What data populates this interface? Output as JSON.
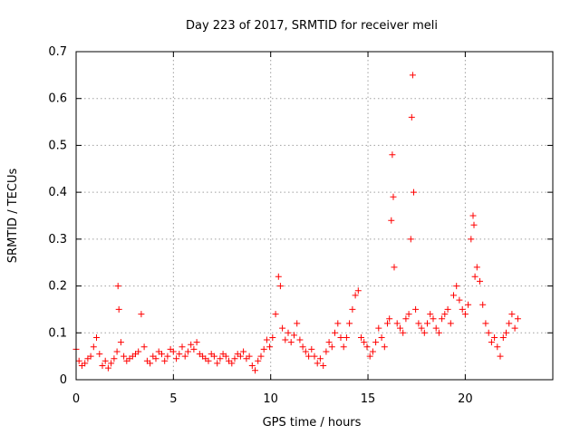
{
  "chart_data": {
    "type": "scatter",
    "title": "Day 223 of 2017, SRMTID for receiver meli",
    "xlabel": "GPS time / hours",
    "ylabel": "SRMTID / TECUs",
    "xlim": [
      0,
      24.5
    ],
    "ylim": [
      0,
      0.7
    ],
    "xticks": [
      0,
      5,
      10,
      15,
      20
    ],
    "xtick_labels": [
      "0",
      "5",
      "10",
      "15",
      "20"
    ],
    "yticks": [
      0,
      0.1,
      0.2,
      0.3,
      0.4,
      0.5,
      0.6,
      0.7
    ],
    "ytick_labels": [
      "0",
      "0.1",
      "0.2",
      "0.3",
      "0.4",
      "0.5",
      "0.6",
      "0.7"
    ],
    "grid": true,
    "marker": "+",
    "color": "#ff0000",
    "series": [
      {
        "name": "SRMTID",
        "x": [
          0.0,
          0.15,
          0.3,
          0.45,
          0.6,
          0.75,
          0.9,
          1.05,
          1.2,
          1.35,
          1.5,
          1.65,
          1.8,
          1.95,
          2.1,
          2.15,
          2.2,
          2.3,
          2.45,
          2.6,
          2.75,
          2.9,
          3.05,
          3.2,
          3.35,
          3.5,
          3.65,
          3.8,
          3.95,
          4.1,
          4.25,
          4.4,
          4.55,
          4.7,
          4.85,
          5.0,
          5.15,
          5.3,
          5.45,
          5.6,
          5.75,
          5.9,
          6.05,
          6.2,
          6.35,
          6.5,
          6.65,
          6.8,
          6.95,
          7.1,
          7.25,
          7.4,
          7.55,
          7.7,
          7.85,
          8.0,
          8.15,
          8.3,
          8.45,
          8.6,
          8.75,
          8.9,
          9.05,
          9.2,
          9.35,
          9.5,
          9.65,
          9.8,
          9.95,
          10.1,
          10.25,
          10.4,
          10.5,
          10.6,
          10.75,
          10.9,
          11.05,
          11.2,
          11.35,
          11.5,
          11.65,
          11.8,
          11.95,
          12.1,
          12.25,
          12.4,
          12.55,
          12.7,
          12.85,
          13.0,
          13.15,
          13.3,
          13.45,
          13.6,
          13.75,
          13.9,
          14.05,
          14.2,
          14.35,
          14.5,
          14.65,
          14.8,
          14.95,
          15.1,
          15.25,
          15.4,
          15.55,
          15.7,
          15.85,
          16.0,
          16.1,
          16.2,
          16.25,
          16.3,
          16.35,
          16.5,
          16.65,
          16.8,
          16.95,
          17.1,
          17.2,
          17.25,
          17.3,
          17.35,
          17.45,
          17.6,
          17.75,
          17.9,
          18.05,
          18.2,
          18.35,
          18.5,
          18.65,
          18.8,
          18.95,
          19.1,
          19.25,
          19.4,
          19.55,
          19.7,
          19.85,
          20.0,
          20.15,
          20.3,
          20.4,
          20.45,
          20.5,
          20.6,
          20.75,
          20.9,
          21.05,
          21.2,
          21.35,
          21.5,
          21.65,
          21.8,
          21.95,
          22.1,
          22.25,
          22.4,
          22.55,
          22.7
        ],
        "y": [
          0.065,
          0.04,
          0.03,
          0.035,
          0.045,
          0.05,
          0.07,
          0.09,
          0.055,
          0.03,
          0.04,
          0.025,
          0.035,
          0.045,
          0.06,
          0.2,
          0.15,
          0.08,
          0.05,
          0.04,
          0.045,
          0.05,
          0.055,
          0.06,
          0.14,
          0.07,
          0.04,
          0.035,
          0.05,
          0.045,
          0.06,
          0.055,
          0.04,
          0.05,
          0.065,
          0.06,
          0.045,
          0.055,
          0.07,
          0.05,
          0.06,
          0.075,
          0.065,
          0.08,
          0.055,
          0.05,
          0.045,
          0.04,
          0.055,
          0.05,
          0.035,
          0.045,
          0.055,
          0.05,
          0.04,
          0.035,
          0.045,
          0.055,
          0.05,
          0.06,
          0.045,
          0.05,
          0.03,
          0.02,
          0.04,
          0.05,
          0.065,
          0.085,
          0.07,
          0.09,
          0.14,
          0.22,
          0.2,
          0.11,
          0.085,
          0.1,
          0.08,
          0.095,
          0.12,
          0.085,
          0.07,
          0.06,
          0.05,
          0.065,
          0.05,
          0.035,
          0.045,
          0.03,
          0.06,
          0.08,
          0.07,
          0.1,
          0.12,
          0.09,
          0.07,
          0.09,
          0.12,
          0.15,
          0.18,
          0.19,
          0.09,
          0.08,
          0.07,
          0.05,
          0.06,
          0.08,
          0.11,
          0.09,
          0.07,
          0.12,
          0.13,
          0.34,
          0.48,
          0.39,
          0.24,
          0.12,
          0.11,
          0.1,
          0.13,
          0.14,
          0.3,
          0.56,
          0.65,
          0.4,
          0.15,
          0.12,
          0.11,
          0.1,
          0.12,
          0.14,
          0.13,
          0.11,
          0.1,
          0.13,
          0.14,
          0.15,
          0.12,
          0.18,
          0.2,
          0.17,
          0.15,
          0.14,
          0.16,
          0.3,
          0.35,
          0.33,
          0.22,
          0.24,
          0.21,
          0.16,
          0.12,
          0.1,
          0.08,
          0.09,
          0.07,
          0.05,
          0.09,
          0.1,
          0.12,
          0.14,
          0.11,
          0.13
        ]
      }
    ]
  }
}
